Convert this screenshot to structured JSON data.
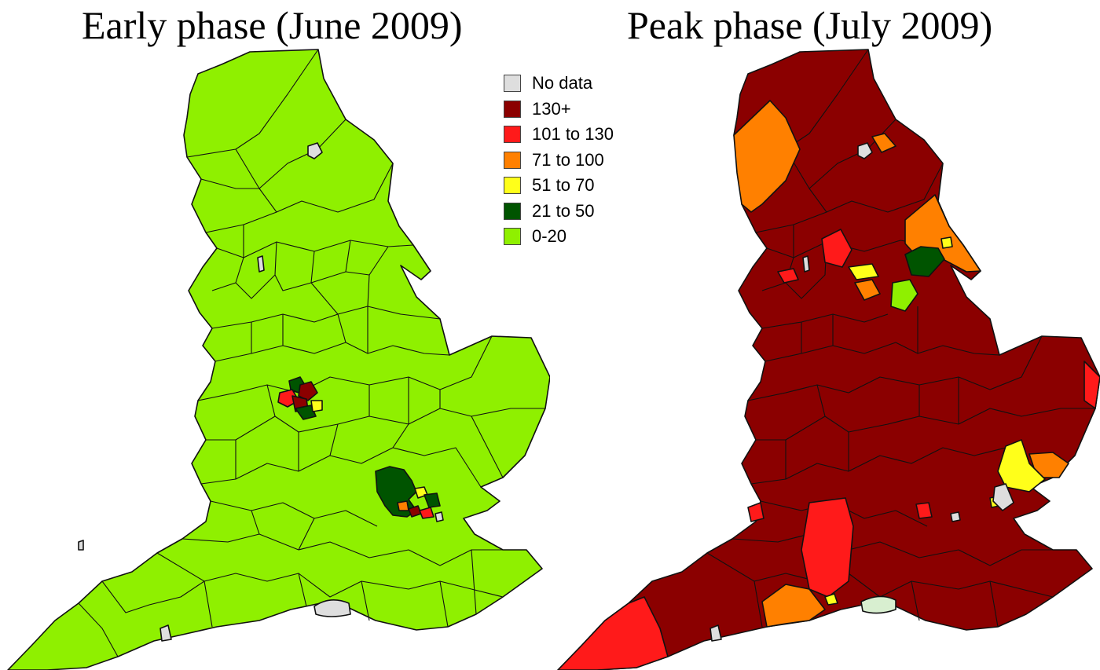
{
  "titles": {
    "left": "Early phase (June 2009)",
    "right": "Peak phase (July 2009)"
  },
  "legend": {
    "items": [
      {
        "label": "No data",
        "color": "#dedede"
      },
      {
        "label": "130+",
        "color": "#8b0000"
      },
      {
        "label": "101 to 130",
        "color": "#ff1a1a"
      },
      {
        "label": "71 to 100",
        "color": "#ff8000"
      },
      {
        "label": "51 to 70",
        "color": "#ffff1a"
      },
      {
        "label": "21 to 50",
        "color": "#005400"
      },
      {
        "label": "0-20",
        "color": "#8ff000"
      }
    ]
  },
  "maps": {
    "early": {
      "base_category": "0-20",
      "base_color": "#8ff000"
    },
    "peak": {
      "base_category": "130+",
      "base_color": "#8b0000"
    }
  }
}
